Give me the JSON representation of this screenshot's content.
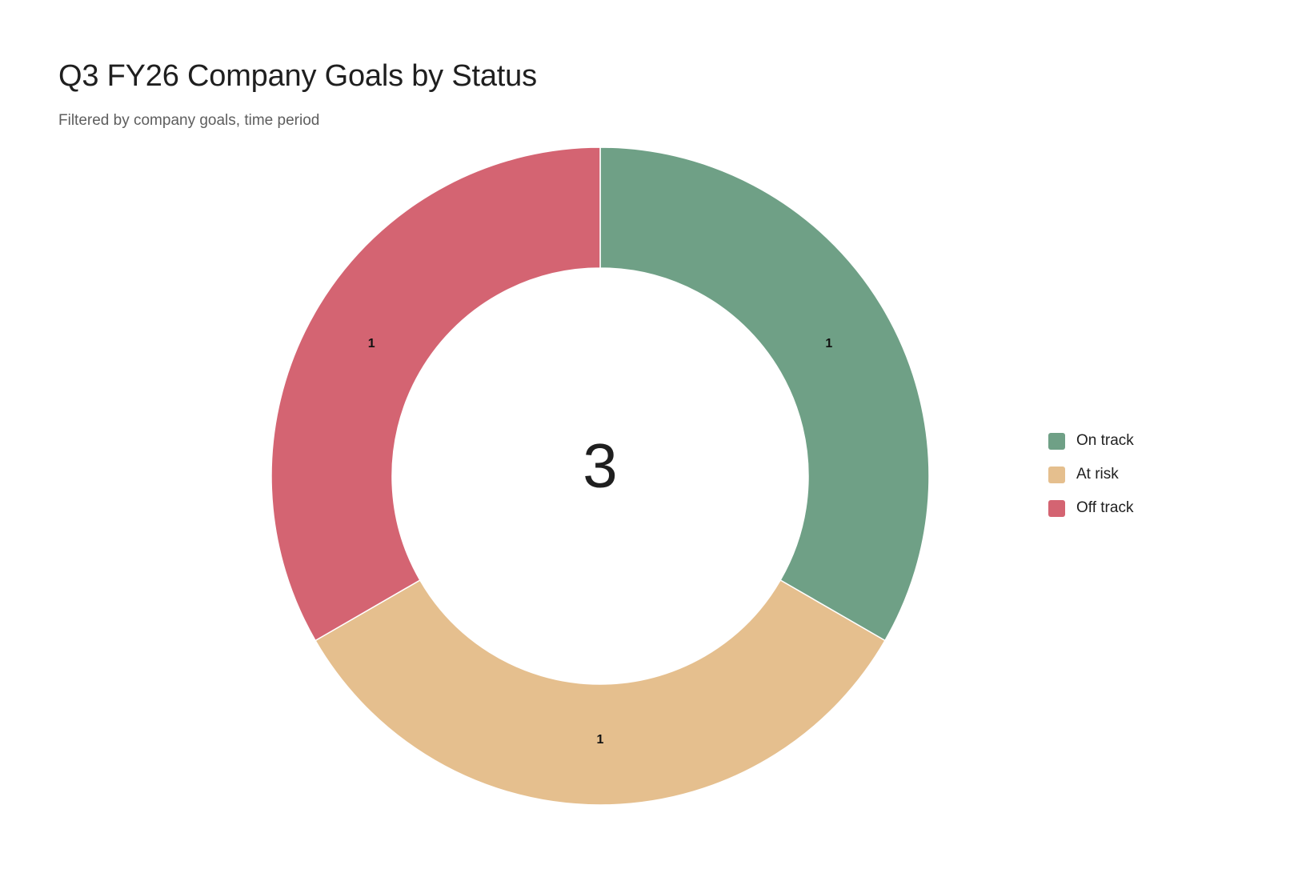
{
  "chart_data": {
    "type": "pie",
    "variant": "donut",
    "title": "Q3 FY26 Company Goals by Status",
    "subtitle": "Filtered by company goals, time period",
    "center_total": "3",
    "categories": [
      "On track",
      "At risk",
      "Off track"
    ],
    "values": [
      1,
      1,
      1
    ],
    "data_labels": [
      "1",
      "1",
      "1"
    ],
    "colors": [
      "#6fa086",
      "#e5bf8e",
      "#d46472"
    ],
    "legend_placement": "right"
  }
}
